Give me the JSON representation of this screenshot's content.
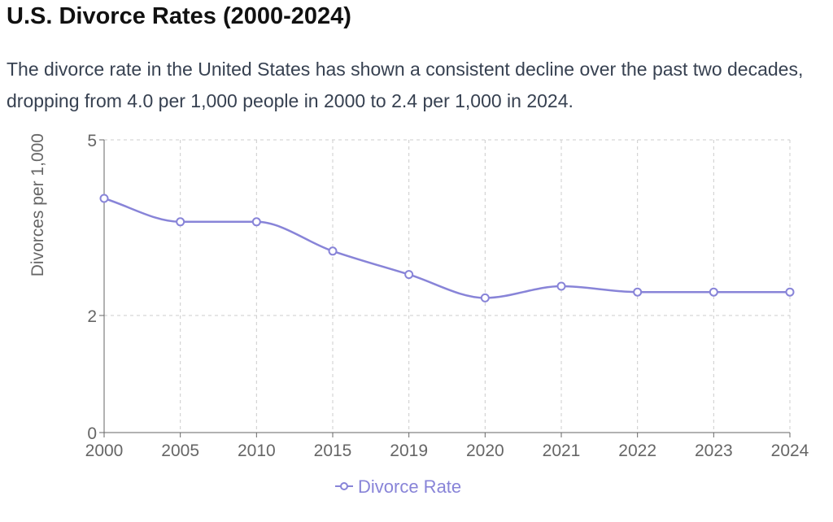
{
  "page": {
    "title": "U.S. Divorce Rates (2000-2024)",
    "description": "The divorce rate in the United States has shown a consistent decline over the past two decades, dropping from 4.0 per 1,000 people in 2000 to 2.4 per 1,000 in 2024."
  },
  "chart_data": {
    "type": "line",
    "categories": [
      "2000",
      "2005",
      "2010",
      "2015",
      "2019",
      "2020",
      "2021",
      "2022",
      "2023",
      "2024"
    ],
    "series": [
      {
        "name": "Divorce Rate",
        "values": [
          4.0,
          3.6,
          3.6,
          3.1,
          2.7,
          2.3,
          2.5,
          2.4,
          2.4,
          2.4
        ],
        "color": "#8884d8"
      }
    ],
    "ylabel": "Divorces per 1,000",
    "xlabel": "",
    "ylim": [
      0,
      5
    ],
    "yticks": [
      0,
      2,
      5
    ],
    "grid": true,
    "curve": "smooth",
    "legend_position": "bottom"
  }
}
